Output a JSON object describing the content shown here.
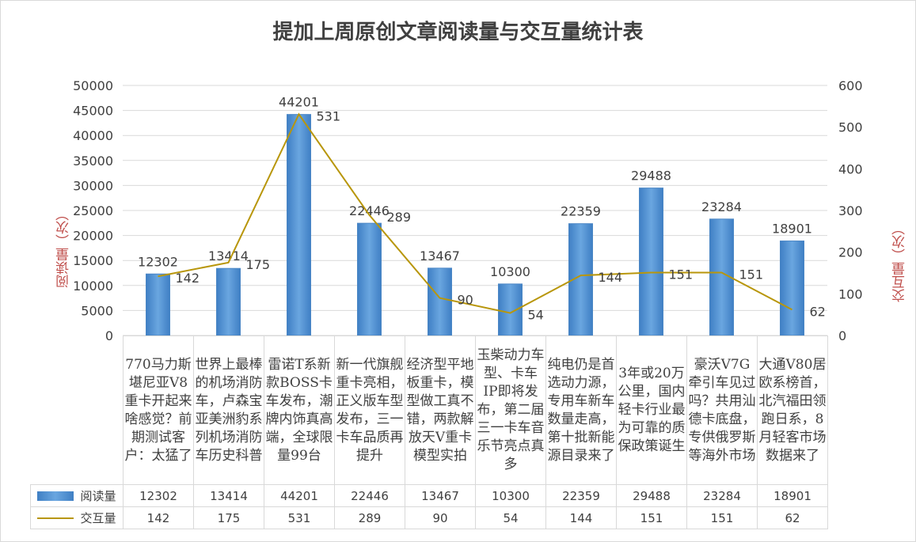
{
  "chart_data": {
    "type": "bar+line",
    "title": "提加上周原创文章阅读量与交互量统计表",
    "ylabel_left": "阅读量（次）",
    "ylabel_right": "交互量（次）",
    "ylim_left": [
      0,
      50000
    ],
    "yticks_left": [
      "0",
      "5000",
      "10000",
      "15000",
      "20000",
      "25000",
      "30000",
      "35000",
      "40000",
      "45000",
      "50000"
    ],
    "ylim_right": [
      0,
      600
    ],
    "yticks_right": [
      "0",
      "100",
      "200",
      "300",
      "400",
      "500",
      "600"
    ],
    "grid": true,
    "legend": "data-table",
    "categories": [
      "770马力斯堪尼亚V8重卡开起来啥感觉？前期测试客户：太猛了",
      "世界上最棒的机场消防车，卢森宝亚美洲豹系列机场消防车历史科普",
      "雷诺T系新款BOSS卡车发布，潮牌内饰真高端，全球限量99台",
      "新一代旗舰重卡亮相，正义版车型发布，三一卡车品质再提升",
      "经济型平地板重卡，模型做工真不错，两款解放天V重卡模型实拍",
      "玉柴动力车型、卡车IP即将发布，第二届三一卡车音乐节亮点真多",
      "纯电仍是首选动力源，专用车新车数量走高，第十批新能源目录来了",
      "3年或20万公里，国内轻卡行业最为可靠的质保政策诞生",
      "豪沃V7G牵引车见过吗？共用汕德卡底盘，专供俄罗斯等海外市场",
      "大通V80居欧系榜首，北汽福田领跑日系，8月轻客市场数据来了"
    ],
    "series": [
      {
        "name": "阅读量",
        "type": "bar",
        "axis": "left",
        "color": "#5b9bd5",
        "values": [
          12302,
          13414,
          44201,
          22446,
          13467,
          10300,
          22359,
          29488,
          23284,
          18901
        ]
      },
      {
        "name": "交互量",
        "type": "line",
        "axis": "right",
        "color": "#b8960b",
        "values": [
          142,
          175,
          531,
          289,
          90,
          54,
          144,
          151,
          151,
          62
        ]
      }
    ]
  }
}
